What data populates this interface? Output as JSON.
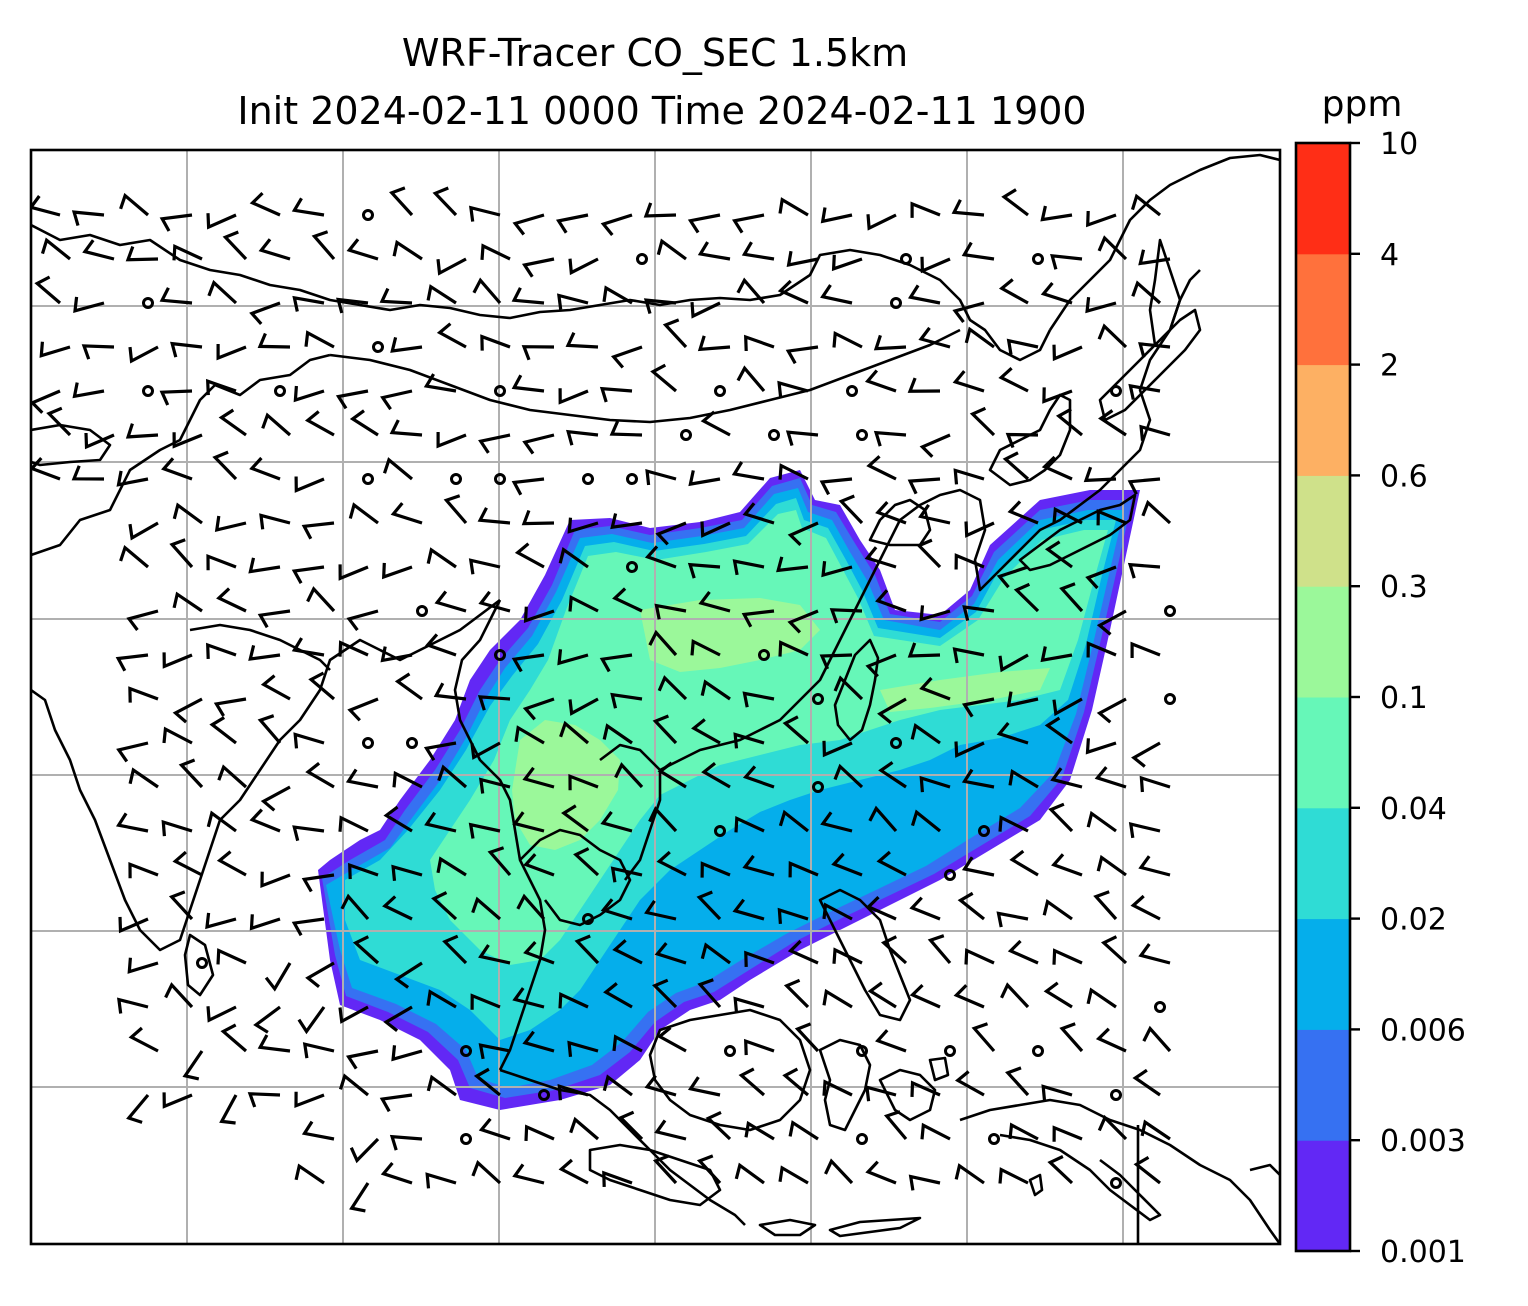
{
  "title": {
    "line1": "WRF-Tracer CO_SEC 1.5km",
    "line2": "Init 2024-02-11 0000 Time 2024-02-11 1900"
  },
  "colorbar": {
    "unit": "ppm",
    "levels": [
      "0.001",
      "0.003",
      "0.006",
      "0.02",
      "0.04",
      "0.1",
      "0.3",
      "0.6",
      "2",
      "4",
      "10"
    ],
    "colors": [
      "#6228f5",
      "#3671f2",
      "#05aeeb",
      "#2fdcd5",
      "#66f7b8",
      "#9bf89a",
      "#cfe18a",
      "#fdb063",
      "#ff713c",
      "#ff2e16"
    ]
  },
  "map": {
    "gridlines": true,
    "features": [
      "coastlines",
      "country-borders",
      "wind-barbs",
      "co-tracer-concentration"
    ]
  }
}
